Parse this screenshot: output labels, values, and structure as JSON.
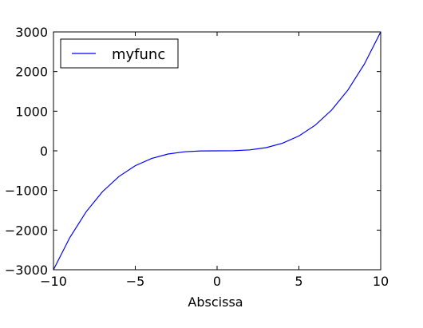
{
  "chart_data": {
    "type": "line",
    "title": "",
    "xlabel": "Abscissa",
    "ylabel": "",
    "xlim": [
      -10,
      10
    ],
    "ylim": [
      -3000,
      3000
    ],
    "xticks": [
      -10,
      -5,
      0,
      5,
      10
    ],
    "xtick_labels": [
      "−10",
      "−5",
      "0",
      "5",
      "10"
    ],
    "yticks": [
      -3000,
      -2000,
      -1000,
      0,
      1000,
      2000,
      3000
    ],
    "ytick_labels": [
      "−3000",
      "−2000",
      "−1000",
      "0",
      "1000",
      "2000",
      "3000"
    ],
    "grid": false,
    "legend": {
      "placement": "top-left",
      "entries": [
        "myfunc"
      ]
    },
    "series": [
      {
        "name": "myfunc",
        "color": "#0000ff",
        "x": [
          -10,
          -9,
          -8,
          -7,
          -6,
          -5,
          -4,
          -3,
          -2,
          -1,
          0,
          1,
          2,
          3,
          4,
          5,
          6,
          7,
          8,
          9,
          10
        ],
        "y": [
          -3000,
          -2187,
          -1536,
          -1029,
          -648,
          -375,
          -192,
          -81,
          -24,
          -3,
          0,
          3,
          24,
          81,
          192,
          375,
          648,
          1029,
          1536,
          2187,
          3000
        ]
      }
    ]
  }
}
